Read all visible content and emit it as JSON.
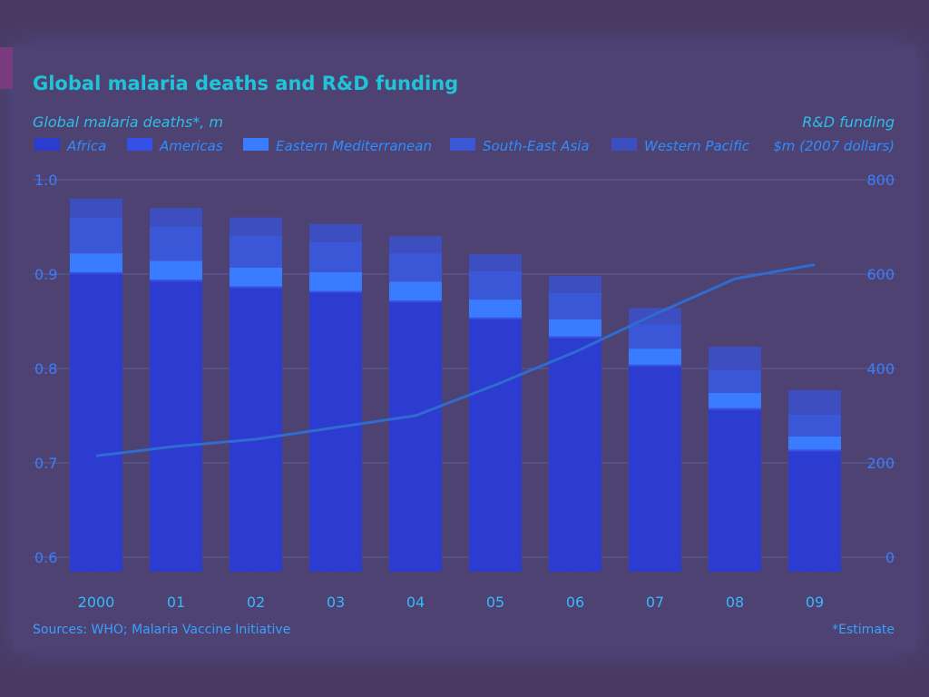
{
  "chart_data": {
    "type": "bar+line",
    "title": "Global malaria deaths and R&D funding",
    "left_axis_label": "Global malaria deaths*, m",
    "right_axis_label_line1": "R&D funding",
    "right_axis_label_line2": "$m (2007 dollars)",
    "categories": [
      "2000",
      "01",
      "02",
      "03",
      "04",
      "05",
      "06",
      "07",
      "08",
      "09"
    ],
    "ylim_left": [
      0.6,
      1.0
    ],
    "yticks_left": [
      "1.0",
      "0.9",
      "0.8",
      "0.7",
      "0.6"
    ],
    "ylim_right": [
      0,
      800
    ],
    "yticks_right": [
      "800",
      "600",
      "400",
      "200",
      "0"
    ],
    "bar_series": [
      {
        "name": "Africa",
        "color": "#2c3bd0",
        "values": [
          0.9,
          0.892,
          0.885,
          0.88,
          0.87,
          0.852,
          0.832,
          0.802,
          0.756,
          0.712
        ]
      },
      {
        "name": "Americas",
        "color": "#3450e6",
        "values": [
          0.002,
          0.002,
          0.002,
          0.002,
          0.002,
          0.002,
          0.002,
          0.002,
          0.002,
          0.002
        ]
      },
      {
        "name": "Eastern Mediterranean",
        "color": "#3a7cff",
        "values": [
          0.02,
          0.02,
          0.02,
          0.02,
          0.02,
          0.019,
          0.018,
          0.017,
          0.016,
          0.014
        ]
      },
      {
        "name": "South-East Asia",
        "color": "#3a57d8",
        "values": [
          0.038,
          0.036,
          0.034,
          0.032,
          0.03,
          0.03,
          0.028,
          0.026,
          0.024,
          0.023
        ]
      },
      {
        "name": "Western Pacific",
        "color": "#3d4fc0",
        "values": [
          0.02,
          0.02,
          0.019,
          0.019,
          0.018,
          0.018,
          0.018,
          0.017,
          0.025,
          0.026
        ]
      }
    ],
    "line_series": {
      "name": "R&D funding",
      "color": "#2f6bd0",
      "values": [
        215,
        235,
        250,
        275,
        300,
        365,
        435,
        515,
        590,
        620
      ]
    },
    "grid": true,
    "legend_position": "top"
  },
  "source_text": "Sources: WHO; Malaria Vaccine Initiative",
  "footnote_text": "*Estimate"
}
